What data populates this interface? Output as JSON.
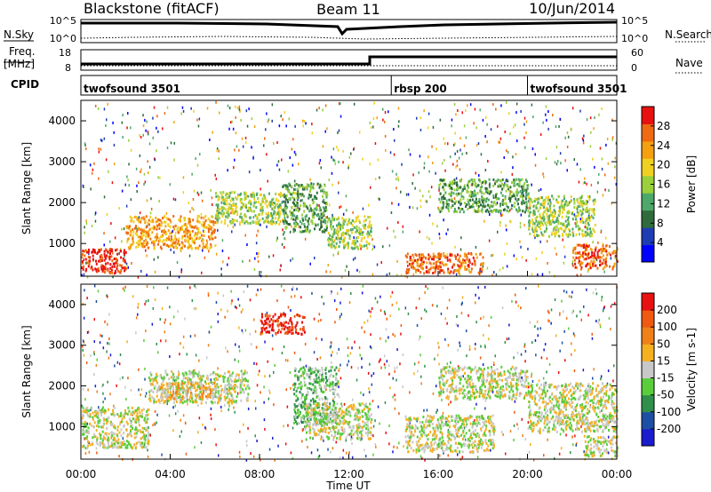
{
  "header": {
    "station": "Blackstone (fitACF)",
    "beam": "Beam 11",
    "date": "10/Jun/2014"
  },
  "side_labels": {
    "nsky": "N.Sky",
    "freq": "Freq.",
    "freq_unit": "[MHz]",
    "cpid": "CPID",
    "nsearch": "N.Search",
    "nave": "Nave",
    "noise_ticks_left": [
      "10^5",
      "10^0"
    ],
    "noise_ticks_right": [
      "10^5",
      "10^0"
    ],
    "freq_ticks": [
      "18",
      "8"
    ],
    "nave_ticks": [
      "60",
      "0"
    ]
  },
  "cpid_segments": [
    {
      "label": "twofsound 3501",
      "start_hour": 0,
      "end_hour": 13.9
    },
    {
      "label": "rbsp 200",
      "start_hour": 13.9,
      "end_hour": 20
    },
    {
      "label": "twofsound 3501",
      "start_hour": 20,
      "end_hour": 24
    }
  ],
  "chart_data": [
    {
      "type": "heatmap",
      "panel": "power",
      "ylabel": "Slant Range [km]",
      "yticks": [
        "1000",
        "2000",
        "3000",
        "4000"
      ],
      "ylim": [
        200,
        4500
      ],
      "xlim_hours": [
        0,
        24
      ],
      "colorbar": {
        "label": "Power [dB]",
        "ticks": [
          "28",
          "24",
          "20",
          "16",
          "12",
          "8",
          "4"
        ],
        "colors": [
          "#0000ff",
          "#1e3cb4",
          "#2f6b3b",
          "#4ea86a",
          "#9ad03a",
          "#f0d020",
          "#f5a010",
          "#ef6a10",
          "#e81010"
        ]
      },
      "bands": [
        {
          "h0": 0.0,
          "h1": 2.0,
          "r0": 300,
          "r1": 900,
          "level": 8
        },
        {
          "h0": 2.0,
          "h1": 6.0,
          "r0": 900,
          "r1": 1700,
          "level": 6
        },
        {
          "h0": 6.0,
          "h1": 9.0,
          "r0": 1500,
          "r1": 2300,
          "level": 4
        },
        {
          "h0": 9.0,
          "h1": 11.0,
          "r0": 1300,
          "r1": 2500,
          "level": 3
        },
        {
          "h0": 11.0,
          "h1": 13.0,
          "r0": 900,
          "r1": 1700,
          "level": 4
        },
        {
          "h0": 14.5,
          "h1": 18.0,
          "r0": 300,
          "r1": 800,
          "level": 7
        },
        {
          "h0": 16.0,
          "h1": 20.0,
          "r0": 1800,
          "r1": 2600,
          "level": 3
        },
        {
          "h0": 20.0,
          "h1": 23.0,
          "r0": 1200,
          "r1": 2200,
          "level": 4
        },
        {
          "h0": 22.0,
          "h1": 24.0,
          "r0": 400,
          "r1": 1000,
          "level": 7
        }
      ]
    },
    {
      "type": "heatmap",
      "panel": "velocity",
      "ylabel": "Slant Range [km]",
      "yticks": [
        "1000",
        "2000",
        "3000",
        "4000"
      ],
      "ylim": [
        200,
        4500
      ],
      "xlim_hours": [
        0,
        24
      ],
      "xlabel": "Time UT",
      "xticks": [
        "00:00",
        "04:00",
        "08:00",
        "12:00",
        "16:00",
        "20:00",
        "00:00"
      ],
      "colorbar": {
        "label": "Velocity [m s-1]",
        "ticks": [
          "200",
          "100",
          "50",
          "15",
          "-15",
          "-50",
          "-100",
          "-200"
        ],
        "colors": [
          "#1b1bd0",
          "#1d4fa4",
          "#2f8f4b",
          "#5acd3a",
          "#c8c8c8",
          "#f5b020",
          "#f08018",
          "#ef5a10",
          "#e81010"
        ]
      },
      "bands": [
        {
          "h0": 0.0,
          "h1": 3.0,
          "r0": 500,
          "r1": 1500,
          "level": 4
        },
        {
          "h0": 3.0,
          "h1": 7.5,
          "r0": 1600,
          "r1": 2400,
          "level": 4
        },
        {
          "h0": 3.5,
          "h1": 6.0,
          "r0": 1700,
          "r1": 2100,
          "level": 5
        },
        {
          "h0": 8.0,
          "h1": 10.0,
          "r0": 3300,
          "r1": 3800,
          "level": 8
        },
        {
          "h0": 9.5,
          "h1": 11.5,
          "r0": 1100,
          "r1": 2500,
          "level": 3
        },
        {
          "h0": 10.0,
          "h1": 13.0,
          "r0": 700,
          "r1": 1600,
          "level": 4
        },
        {
          "h0": 14.5,
          "h1": 18.5,
          "r0": 400,
          "r1": 1300,
          "level": 4
        },
        {
          "h0": 16.0,
          "h1": 20.0,
          "r0": 1700,
          "r1": 2500,
          "level": 4
        },
        {
          "h0": 20.0,
          "h1": 24.0,
          "r0": 900,
          "r1": 2100,
          "level": 4
        },
        {
          "h0": 22.5,
          "h1": 24.0,
          "r0": 300,
          "r1": 800,
          "level": 4
        }
      ]
    }
  ]
}
